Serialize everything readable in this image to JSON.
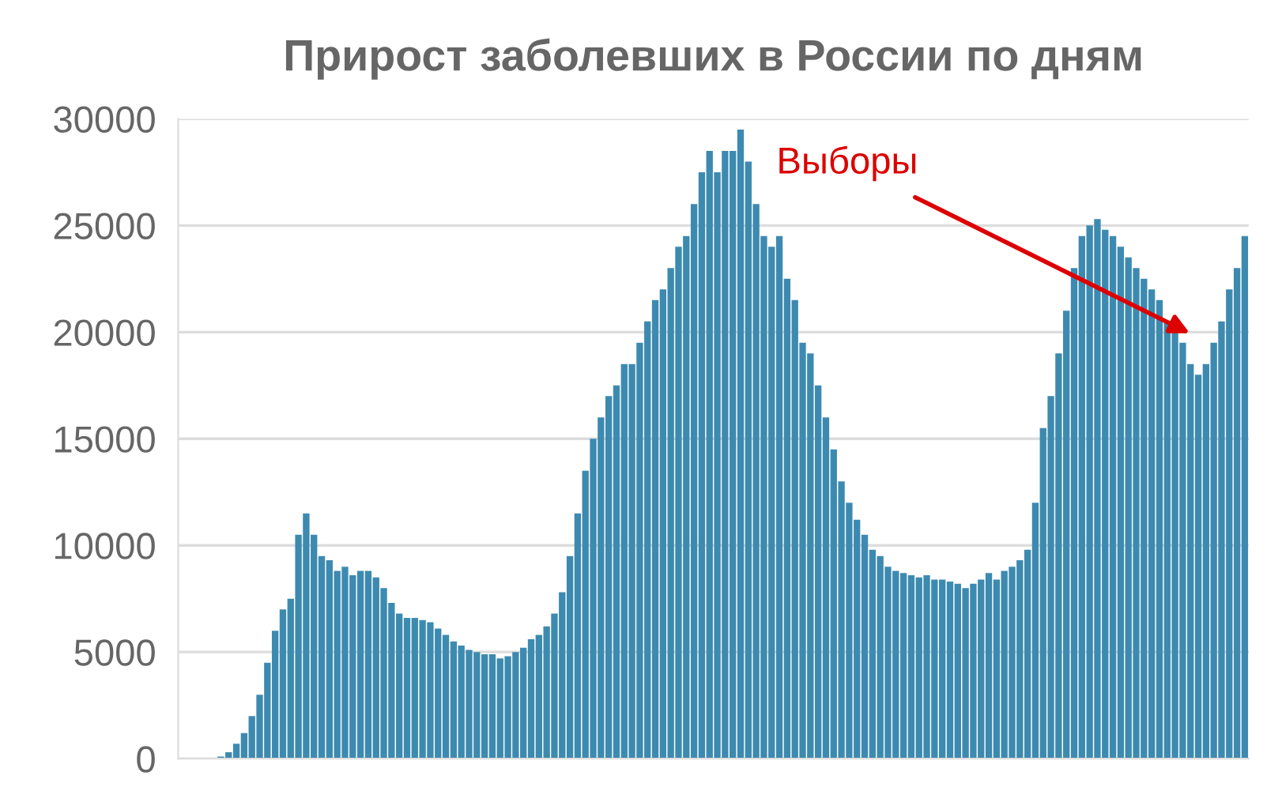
{
  "chart_data": {
    "type": "bar",
    "title": "Прирост заболевших в России по дням",
    "categories": [
      null,
      null,
      null,
      null,
      null,
      null,
      null,
      null,
      null,
      null,
      null,
      null,
      null,
      null,
      null,
      null,
      null,
      null,
      null,
      null,
      null,
      null,
      null,
      null,
      null,
      null,
      null,
      null,
      null,
      null,
      null,
      null,
      null,
      null,
      null,
      null,
      null,
      null,
      null,
      null,
      null,
      null,
      null,
      null,
      null,
      null,
      null,
      null,
      null,
      null,
      null,
      null,
      null,
      null,
      null,
      null,
      null,
      null,
      null,
      null,
      null,
      null,
      null,
      null,
      null,
      null,
      null,
      null,
      null,
      null,
      null,
      null,
      null,
      null,
      null,
      null,
      null,
      null,
      null,
      null,
      null,
      null,
      null,
      null,
      null,
      null,
      null,
      null,
      null,
      null,
      null,
      null,
      null,
      null,
      null,
      null,
      null,
      null,
      null,
      null,
      null,
      null,
      null,
      null,
      null,
      null,
      null,
      null,
      null,
      null,
      null,
      null,
      null,
      null,
      null,
      null,
      null,
      null,
      null,
      null,
      null,
      null,
      null,
      null,
      null,
      null,
      null,
      null,
      null,
      null,
      null,
      null,
      null,
      null,
      null,
      null,
      null,
      null
    ],
    "values": [
      0,
      0,
      0,
      0,
      0,
      100,
      300,
      700,
      1200,
      2000,
      3000,
      4500,
      6000,
      7000,
      7500,
      10500,
      11500,
      10500,
      9500,
      9300,
      8800,
      9000,
      8600,
      8800,
      8800,
      8500,
      8000,
      7300,
      6800,
      6600,
      6600,
      6500,
      6400,
      6100,
      5800,
      5500,
      5300,
      5100,
      5000,
      4900,
      4900,
      4700,
      4800,
      5000,
      5200,
      5600,
      5800,
      6200,
      6800,
      7800,
      9500,
      11500,
      13500,
      15000,
      16000,
      17000,
      17500,
      18500,
      18500,
      19500,
      20500,
      21500,
      22000,
      23000,
      24000,
      24500,
      26000,
      27500,
      28500,
      27500,
      28500,
      28500,
      29500,
      28000,
      26000,
      24500,
      24000,
      24500,
      22500,
      21500,
      19500,
      19000,
      17500,
      16000,
      14500,
      13000,
      12000,
      11200,
      10500,
      9800,
      9500,
      9000,
      8800,
      8700,
      8600,
      8500,
      8600,
      8400,
      8400,
      8300,
      8200,
      8000,
      8200,
      8400,
      8700,
      8400,
      8800,
      9000,
      9300,
      9800,
      12000,
      15500,
      17000,
      19000,
      21000,
      23000,
      24500,
      25000,
      25300,
      24800,
      24500,
      24000,
      23500,
      23000,
      22500,
      22000,
      21500,
      20500,
      20000,
      19500,
      18500,
      18000,
      18500,
      19500,
      20500,
      22000,
      23000,
      24500
    ],
    "color": "#3d8ab0",
    "ylim": [
      0,
      30000
    ],
    "yticks": [
      0,
      5000,
      10000,
      15000,
      20000,
      25000,
      30000
    ],
    "grid": "y",
    "annotations": [
      "Выборы"
    ]
  }
}
